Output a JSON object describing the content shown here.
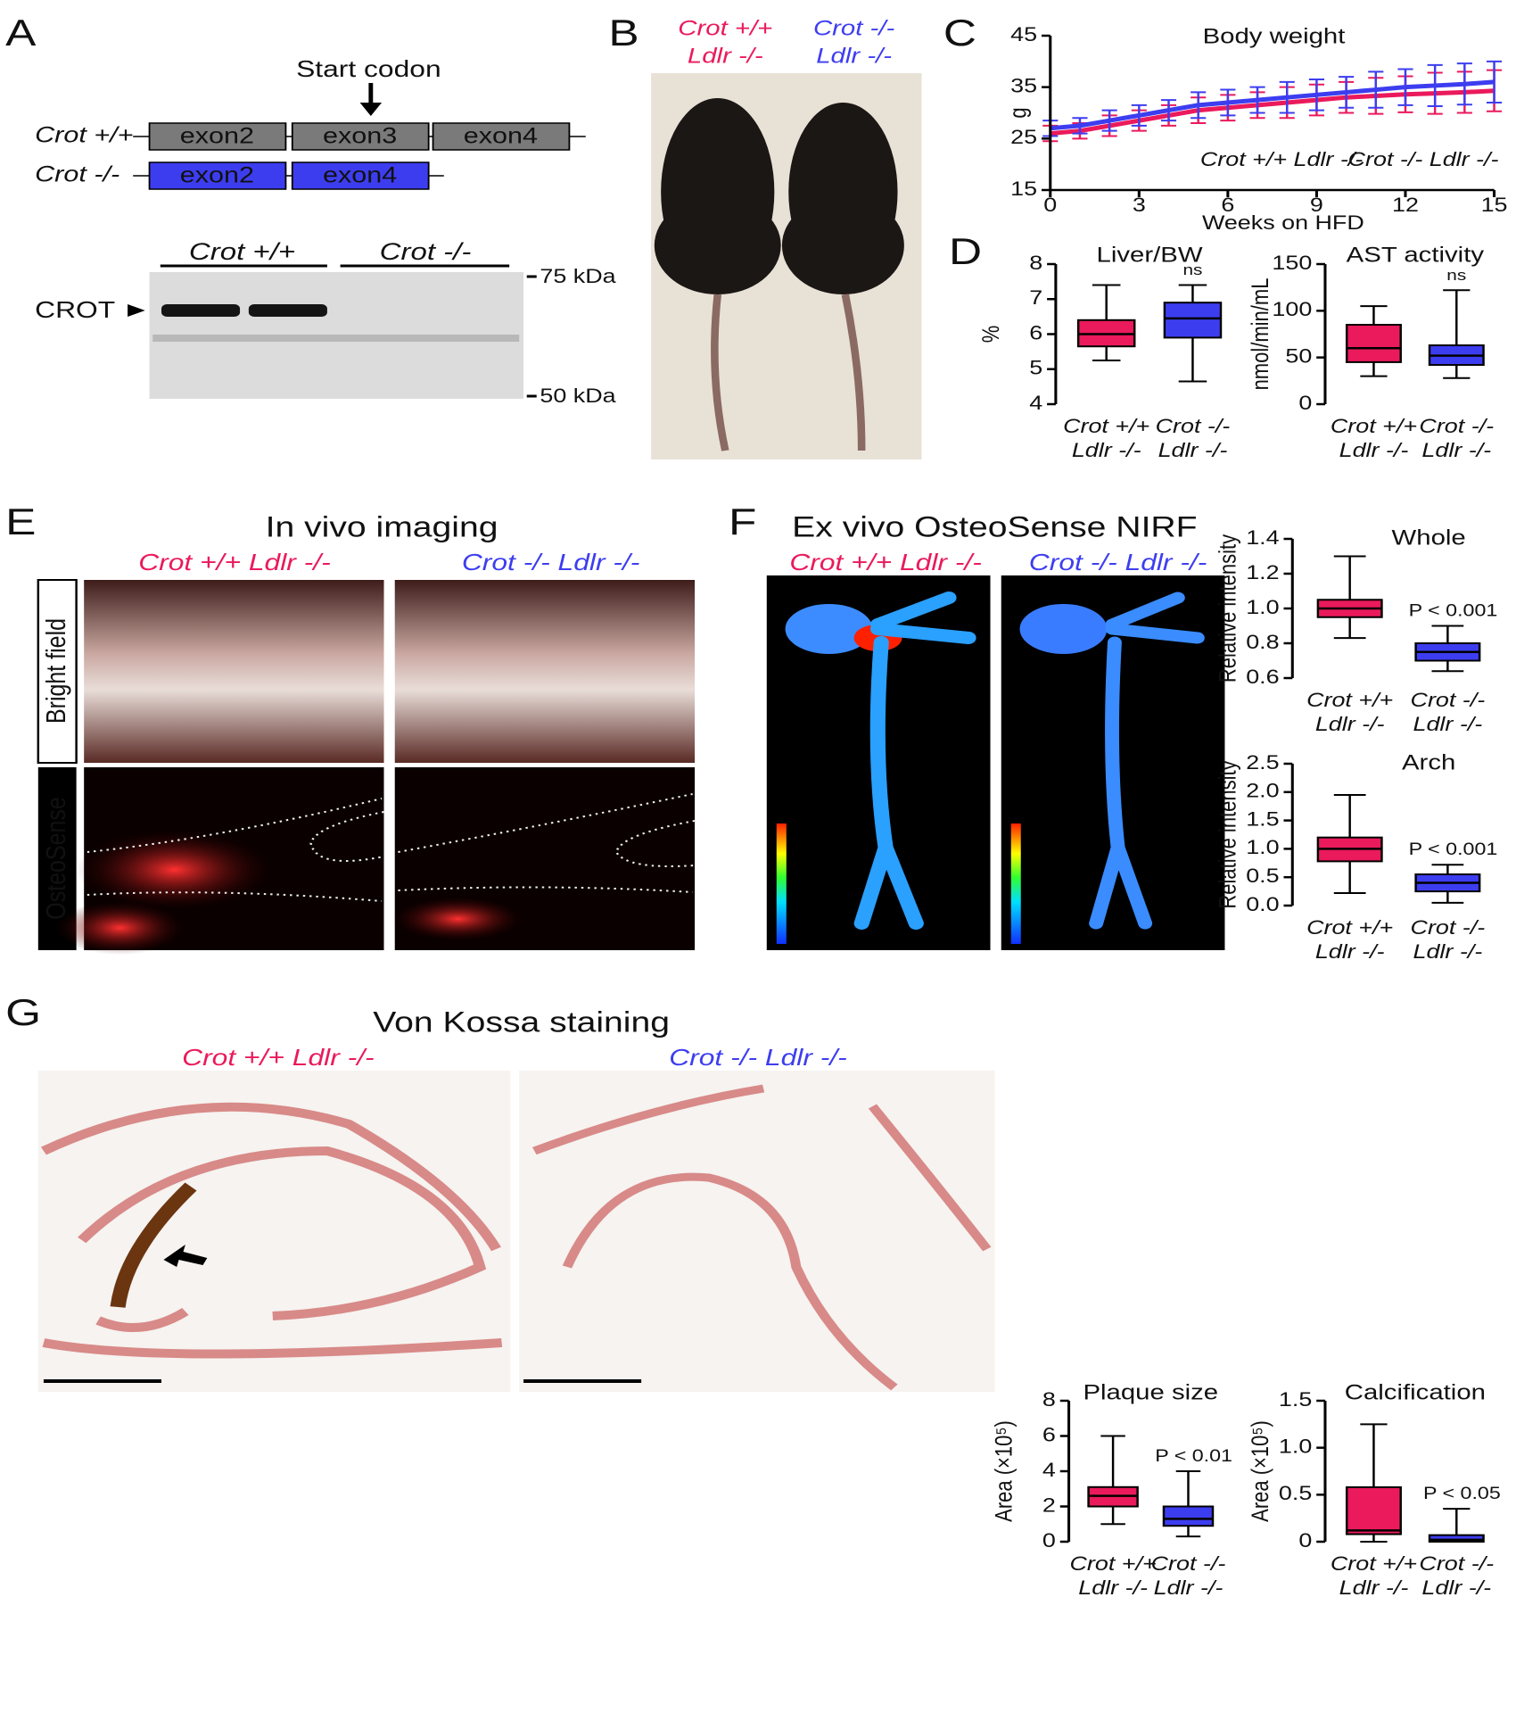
{
  "panel_letters": [
    "A",
    "B",
    "C",
    "D",
    "E",
    "F",
    "G"
  ],
  "panel_a": {
    "start_codon": "Start codon",
    "rows": [
      {
        "genotype": "Crot +/+",
        "exons": [
          "exon2",
          "exon3",
          "exon4"
        ]
      },
      {
        "genotype": "Crot -/-",
        "exons": [
          "exon2",
          "exon4"
        ]
      }
    ],
    "blot_lanes": [
      "Crot +/+",
      "Crot -/-"
    ],
    "band": "CROT",
    "markers": [
      "75 kDa",
      "50 kDa"
    ]
  },
  "panel_b": {
    "labels": [
      [
        "Crot +/+",
        "Ldlr -/-"
      ],
      [
        "Crot -/-",
        "Ldlr -/-"
      ]
    ]
  },
  "panel_e": {
    "title": "In vivo imaging",
    "columns": [
      "Crot +/+ Ldlr -/-",
      "Crot -/- Ldlr -/-"
    ],
    "rows": [
      "Bright field",
      "OsteoSense"
    ]
  },
  "panel_f": {
    "title": "Ex vivo OsteoSense NIRF",
    "columns": [
      "Crot +/+ Ldlr -/-",
      "Crot -/- Ldlr -/-"
    ]
  },
  "panel_g": {
    "title": "Von Kossa staining",
    "columns": [
      "Crot +/+ Ldlr -/-",
      "Crot -/- Ldlr -/-"
    ]
  },
  "chart_data": [
    {
      "type": "line",
      "title": "Body weight",
      "x_label": "Weeks on HFD",
      "y_label": "g",
      "x": [
        0,
        1,
        2,
        3,
        4,
        5,
        6,
        7,
        8,
        9,
        10,
        11,
        12,
        13,
        14,
        15
      ],
      "xlim": [
        0,
        15
      ],
      "xticks": [
        0,
        3,
        6,
        9,
        12,
        15
      ],
      "ylim": [
        15,
        45
      ],
      "yticks": [
        15,
        25,
        35,
        45
      ],
      "series": [
        {
          "name": "Crot +/+ Ldlr -/-",
          "color": "#ea1a5c",
          "values": [
            26,
            26.5,
            27.5,
            28.5,
            29.5,
            30.5,
            31,
            31.5,
            32,
            32.5,
            33,
            33.3,
            33.6,
            33.8,
            34,
            34.3
          ],
          "errors": [
            1.5,
            1.5,
            2,
            2,
            2,
            2.5,
            2.5,
            2.5,
            3,
            3,
            3,
            3.5,
            3.5,
            4,
            4,
            4
          ]
        },
        {
          "name": "Crot -/- Ldlr -/-",
          "color": "#3d3df0",
          "values": [
            27,
            27.5,
            28.5,
            29.5,
            30.5,
            31.5,
            32,
            32.5,
            33,
            33.5,
            34,
            34.5,
            35,
            35.3,
            35.6,
            36
          ],
          "errors": [
            1.5,
            1.5,
            2,
            2,
            2,
            2.5,
            2.5,
            2.5,
            3,
            3,
            3,
            3.5,
            3.5,
            4,
            4,
            4
          ]
        }
      ]
    },
    {
      "type": "box",
      "title": "Liver/BW",
      "y_label": "%",
      "ylim": [
        4,
        8
      ],
      "yticks": [
        4,
        5,
        6,
        7,
        8
      ],
      "annotation": "ns",
      "categories": [
        [
          "Crot +/+",
          "Ldlr -/-"
        ],
        [
          "Crot -/-",
          "Ldlr -/-"
        ]
      ],
      "boxes": [
        {
          "color": "#ea1a5c",
          "min": 5.25,
          "q1": 5.65,
          "median": 6.0,
          "q3": 6.4,
          "max": 7.4
        },
        {
          "color": "#3d3df0",
          "min": 4.65,
          "q1": 5.9,
          "median": 6.45,
          "q3": 6.9,
          "max": 7.4
        }
      ]
    },
    {
      "type": "box",
      "title": "AST activity",
      "y_label": "nmol/min/mL",
      "ylim": [
        0,
        150
      ],
      "yticks": [
        0,
        50,
        100,
        150
      ],
      "annotation": "ns",
      "categories": [
        [
          "Crot +/+",
          "Ldlr -/-"
        ],
        [
          "Crot -/-",
          "Ldlr -/-"
        ]
      ],
      "boxes": [
        {
          "color": "#ea1a5c",
          "min": 30,
          "q1": 45,
          "median": 60,
          "q3": 85,
          "max": 105
        },
        {
          "color": "#3d3df0",
          "min": 28,
          "q1": 42,
          "median": 52,
          "q3": 63,
          "max": 122
        }
      ]
    },
    {
      "type": "box",
      "title": "Whole",
      "y_label": "Relative intensity",
      "ylim": [
        0.6,
        1.4
      ],
      "yticks": [
        0.6,
        0.8,
        {
          "value": 1,
          "label": "1.0"
        },
        1.2,
        1.4
      ],
      "annotation": "P < 0.001",
      "categories": [
        [
          "Crot +/+",
          "Ldlr -/-"
        ],
        [
          "Crot -/-",
          "Ldlr -/-"
        ]
      ],
      "boxes": [
        {
          "color": "#ea1a5c",
          "min": 0.83,
          "q1": 0.95,
          "median": 1.0,
          "q3": 1.05,
          "max": 1.3
        },
        {
          "color": "#3d3df0",
          "min": 0.64,
          "q1": 0.7,
          "median": 0.75,
          "q3": 0.8,
          "max": 0.9
        }
      ]
    },
    {
      "type": "box",
      "title": "Arch",
      "y_label": "Relative intensity",
      "ylim": [
        0,
        2.5
      ],
      "yticks": [
        {
          "value": 0,
          "label": "0.0"
        },
        0.5,
        {
          "value": 1,
          "label": "1.0"
        },
        1.5,
        {
          "value": 2,
          "label": "2.0"
        },
        2.5
      ],
      "annotation": "P < 0.001",
      "categories": [
        [
          "Crot +/+",
          "Ldlr -/-"
        ],
        [
          "Crot -/-",
          "Ldlr -/-"
        ]
      ],
      "boxes": [
        {
          "color": "#ea1a5c",
          "min": 0.22,
          "q1": 0.78,
          "median": 1.0,
          "q3": 1.2,
          "max": 1.95
        },
        {
          "color": "#3d3df0",
          "min": 0.05,
          "q1": 0.25,
          "median": 0.4,
          "q3": 0.55,
          "max": 0.72
        }
      ]
    },
    {
      "type": "box",
      "title": "Plaque size",
      "y_label": "Area (×10⁵)",
      "ylim": [
        0,
        8
      ],
      "yticks": [
        0,
        2,
        4,
        6,
        8
      ],
      "annotation": "P < 0.01",
      "categories": [
        [
          "Crot +/+",
          "Ldlr -/-"
        ],
        [
          "Crot -/-",
          "Ldlr -/-"
        ]
      ],
      "boxes": [
        {
          "color": "#ea1a5c",
          "min": 1,
          "q1": 2,
          "median": 2.6,
          "q3": 3.1,
          "max": 6
        },
        {
          "color": "#3d3df0",
          "min": 0.3,
          "q1": 0.9,
          "median": 1.3,
          "q3": 2,
          "max": 4
        }
      ]
    },
    {
      "type": "box",
      "title": "Calcification",
      "y_label": "Area (×10⁵)",
      "ylim": [
        0,
        1.5
      ],
      "yticks": [
        0,
        0.5,
        {
          "value": 1,
          "label": "1.0"
        },
        1.5
      ],
      "annotation": "P < 0.05",
      "categories": [
        [
          "Crot +/+",
          "Ldlr -/-"
        ],
        [
          "Crot -/-",
          "Ldlr -/-"
        ]
      ],
      "boxes": [
        {
          "color": "#ea1a5c",
          "min": 0,
          "q1": 0.08,
          "median": 0.12,
          "q3": 0.58,
          "max": 1.25
        },
        {
          "color": "#3d3df0",
          "min": 0,
          "q1": 0,
          "median": 0.02,
          "q3": 0.07,
          "max": 0.35
        }
      ]
    }
  ]
}
